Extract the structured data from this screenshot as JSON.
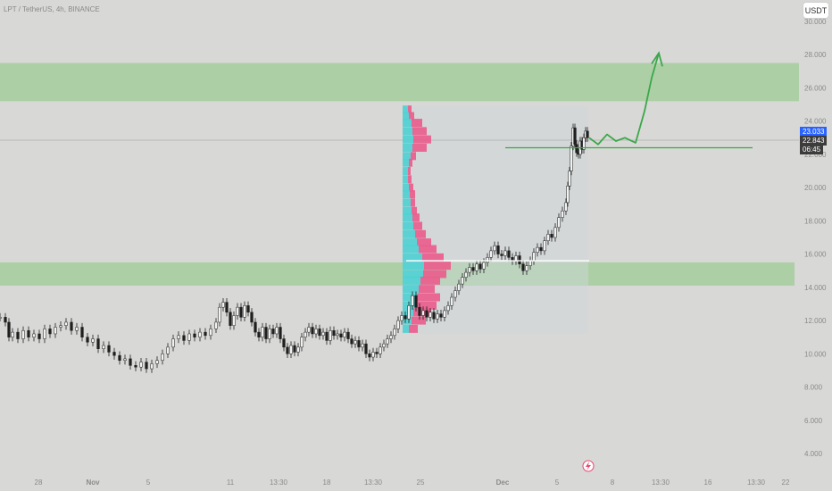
{
  "header": {
    "symbol": "LPT / TetherUS, 4h, BINANCE",
    "currency_button": "USDT"
  },
  "price_labels": {
    "last": "23.033",
    "current": "22.843",
    "countdown": "06:45"
  },
  "colors": {
    "background": "#d8d8d6",
    "zone": "#a9cea0",
    "bull_volume": "#4fd0d4",
    "bear_volume": "#ea5c8c",
    "projection": "#3aa84a",
    "price_label": "#2962ff",
    "countdown_label": "#3c3c3c"
  },
  "chart_data": {
    "type": "candlestick",
    "y_axis": {
      "ticks": [
        "30.000",
        "28.000",
        "26.000",
        "24.000",
        "22.000",
        "20.000",
        "18.000",
        "16.000",
        "14.000",
        "12.000",
        "10.000",
        "8.000",
        "6.000",
        "4.000"
      ],
      "range": [
        4,
        30
      ]
    },
    "x_axis": {
      "ticks": [
        "28",
        "Nov",
        "5",
        "11",
        "13:30",
        "18",
        "13:30",
        "25",
        "Dec",
        "5",
        "8",
        "13:30",
        "16",
        "13:30",
        "22"
      ]
    },
    "price_path": [
      [
        0,
        12.2
      ],
      [
        6,
        11.9
      ],
      [
        10,
        11.0
      ],
      [
        14,
        11.3
      ],
      [
        20,
        10.9
      ],
      [
        26,
        11.4
      ],
      [
        32,
        11.0
      ],
      [
        38,
        11.2
      ],
      [
        44,
        10.9
      ],
      [
        50,
        11.5
      ],
      [
        56,
        11.2
      ],
      [
        62,
        11.6
      ],
      [
        68,
        11.7
      ],
      [
        74,
        11.9
      ],
      [
        80,
        11.4
      ],
      [
        86,
        11.6
      ],
      [
        92,
        11.0
      ],
      [
        98,
        10.7
      ],
      [
        104,
        10.9
      ],
      [
        110,
        10.3
      ],
      [
        116,
        10.5
      ],
      [
        122,
        10.1
      ],
      [
        128,
        9.9
      ],
      [
        134,
        9.6
      ],
      [
        140,
        9.7
      ],
      [
        146,
        9.3
      ],
      [
        152,
        9.2
      ],
      [
        158,
        9.5
      ],
      [
        164,
        9.1
      ],
      [
        170,
        9.4
      ],
      [
        176,
        9.6
      ],
      [
        182,
        10.0
      ],
      [
        188,
        10.4
      ],
      [
        194,
        10.9
      ],
      [
        200,
        11.1
      ],
      [
        206,
        10.8
      ],
      [
        212,
        11.2
      ],
      [
        218,
        11.0
      ],
      [
        224,
        11.3
      ],
      [
        230,
        11.1
      ],
      [
        236,
        11.5
      ],
      [
        242,
        11.9
      ],
      [
        246,
        12.8
      ],
      [
        250,
        13.1
      ],
      [
        254,
        12.5
      ],
      [
        258,
        11.7
      ],
      [
        262,
        12.3
      ],
      [
        266,
        12.8
      ],
      [
        270,
        12.2
      ],
      [
        274,
        12.9
      ],
      [
        278,
        12.5
      ],
      [
        282,
        11.9
      ],
      [
        286,
        11.3
      ],
      [
        290,
        11.0
      ],
      [
        294,
        11.6
      ],
      [
        298,
        10.9
      ],
      [
        302,
        11.5
      ],
      [
        306,
        11.2
      ],
      [
        310,
        11.6
      ],
      [
        314,
        10.9
      ],
      [
        318,
        10.4
      ],
      [
        322,
        10.0
      ],
      [
        326,
        10.5
      ],
      [
        330,
        10.1
      ],
      [
        334,
        10.4
      ],
      [
        338,
        11.0
      ],
      [
        342,
        11.3
      ],
      [
        346,
        11.6
      ],
      [
        350,
        11.2
      ],
      [
        354,
        11.5
      ],
      [
        358,
        11.1
      ],
      [
        362,
        11.3
      ],
      [
        366,
        10.8
      ],
      [
        370,
        11.4
      ],
      [
        374,
        11.1
      ],
      [
        378,
        11.2
      ],
      [
        382,
        11.0
      ],
      [
        386,
        11.3
      ],
      [
        390,
        10.9
      ],
      [
        394,
        10.6
      ],
      [
        398,
        10.8
      ],
      [
        402,
        10.4
      ],
      [
        406,
        10.6
      ],
      [
        410,
        10.0
      ],
      [
        414,
        9.8
      ],
      [
        418,
        10.1
      ],
      [
        422,
        10.0
      ],
      [
        426,
        10.4
      ],
      [
        430,
        10.6
      ],
      [
        434,
        10.9
      ],
      [
        438,
        11.1
      ],
      [
        442,
        11.5
      ],
      [
        446,
        12.0
      ],
      [
        450,
        12.3
      ],
      [
        454,
        12.1
      ],
      [
        458,
        12.9
      ],
      [
        462,
        13.5
      ],
      [
        466,
        12.8
      ],
      [
        470,
        12.3
      ],
      [
        474,
        12.6
      ],
      [
        478,
        12.2
      ],
      [
        482,
        12.5
      ],
      [
        486,
        12.1
      ],
      [
        490,
        12.4
      ],
      [
        494,
        12.2
      ],
      [
        498,
        12.6
      ],
      [
        502,
        12.9
      ],
      [
        506,
        13.4
      ],
      [
        510,
        13.8
      ],
      [
        514,
        14.2
      ],
      [
        518,
        14.6
      ],
      [
        522,
        14.9
      ],
      [
        526,
        15.2
      ],
      [
        530,
        15.0
      ],
      [
        534,
        15.4
      ],
      [
        538,
        15.1
      ],
      [
        542,
        15.5
      ],
      [
        546,
        15.8
      ],
      [
        550,
        16.2
      ],
      [
        554,
        16.5
      ],
      [
        558,
        16.0
      ],
      [
        562,
        15.9
      ],
      [
        566,
        16.2
      ],
      [
        570,
        15.8
      ],
      [
        574,
        15.6
      ],
      [
        578,
        15.9
      ],
      [
        582,
        15.4
      ],
      [
        586,
        15.0
      ],
      [
        590,
        15.3
      ],
      [
        594,
        15.6
      ],
      [
        598,
        16.1
      ],
      [
        602,
        16.4
      ],
      [
        606,
        16.2
      ],
      [
        610,
        16.8
      ],
      [
        614,
        17.2
      ],
      [
        618,
        17.0
      ],
      [
        622,
        17.6
      ],
      [
        626,
        18.2
      ],
      [
        630,
        18.6
      ],
      [
        634,
        19.1
      ],
      [
        636,
        20.1
      ],
      [
        638,
        21.0
      ],
      [
        640,
        22.5
      ],
      [
        642,
        23.6
      ],
      [
        644,
        22.6
      ],
      [
        646,
        22.1
      ],
      [
        648,
        22.0
      ],
      [
        650,
        22.8
      ],
      [
        652,
        22.3
      ],
      [
        654,
        23.0
      ],
      [
        656,
        23.4
      ],
      [
        658,
        23.0
      ]
    ],
    "annotations": {
      "supply_zone": [
        25.2,
        27.5
      ],
      "demand_zone": [
        14.1,
        15.5
      ],
      "poc_line": 15.6,
      "support_line": 22.4,
      "volume_profile_range": [
        11.2,
        24.9
      ]
    },
    "projection_path": [
      [
        660,
        23.0
      ],
      [
        670,
        22.6
      ],
      [
        680,
        23.2
      ],
      [
        690,
        22.8
      ],
      [
        700,
        23.0
      ],
      [
        712,
        22.7
      ],
      [
        722,
        24.6
      ],
      [
        730,
        26.6
      ],
      [
        738,
        28.1
      ]
    ],
    "volume_profile": [
      {
        "price": 24.7,
        "buy": 6,
        "sell": 4
      },
      {
        "price": 24.3,
        "buy": 7,
        "sell": 6
      },
      {
        "price": 23.9,
        "buy": 10,
        "sell": 12
      },
      {
        "price": 23.4,
        "buy": 11,
        "sell": 16
      },
      {
        "price": 22.9,
        "buy": 12,
        "sell": 20
      },
      {
        "price": 22.4,
        "buy": 11,
        "sell": 16
      },
      {
        "price": 21.9,
        "buy": 9,
        "sell": 6
      },
      {
        "price": 21.5,
        "buy": 7,
        "sell": 4
      },
      {
        "price": 21.0,
        "buy": 6,
        "sell": 3
      },
      {
        "price": 20.5,
        "buy": 6,
        "sell": 4
      },
      {
        "price": 20.0,
        "buy": 7,
        "sell": 5
      },
      {
        "price": 19.6,
        "buy": 8,
        "sell": 6
      },
      {
        "price": 19.1,
        "buy": 9,
        "sell": 5
      },
      {
        "price": 18.6,
        "buy": 10,
        "sell": 6
      },
      {
        "price": 18.2,
        "buy": 11,
        "sell": 8
      },
      {
        "price": 17.7,
        "buy": 12,
        "sell": 10
      },
      {
        "price": 17.2,
        "buy": 14,
        "sell": 12
      },
      {
        "price": 16.7,
        "buy": 16,
        "sell": 16
      },
      {
        "price": 16.3,
        "buy": 18,
        "sell": 20
      },
      {
        "price": 15.8,
        "buy": 22,
        "sell": 24
      },
      {
        "price": 15.3,
        "buy": 24,
        "sell": 30
      },
      {
        "price": 14.8,
        "buy": 23,
        "sell": 26
      },
      {
        "price": 14.4,
        "buy": 20,
        "sell": 22
      },
      {
        "price": 13.9,
        "buy": 18,
        "sell": 18
      },
      {
        "price": 13.4,
        "buy": 16,
        "sell": 26
      },
      {
        "price": 12.9,
        "buy": 14,
        "sell": 24
      },
      {
        "price": 12.5,
        "buy": 12,
        "sell": 20
      },
      {
        "price": 12.0,
        "buy": 10,
        "sell": 16
      },
      {
        "price": 11.5,
        "buy": 7,
        "sell": 10
      }
    ]
  }
}
